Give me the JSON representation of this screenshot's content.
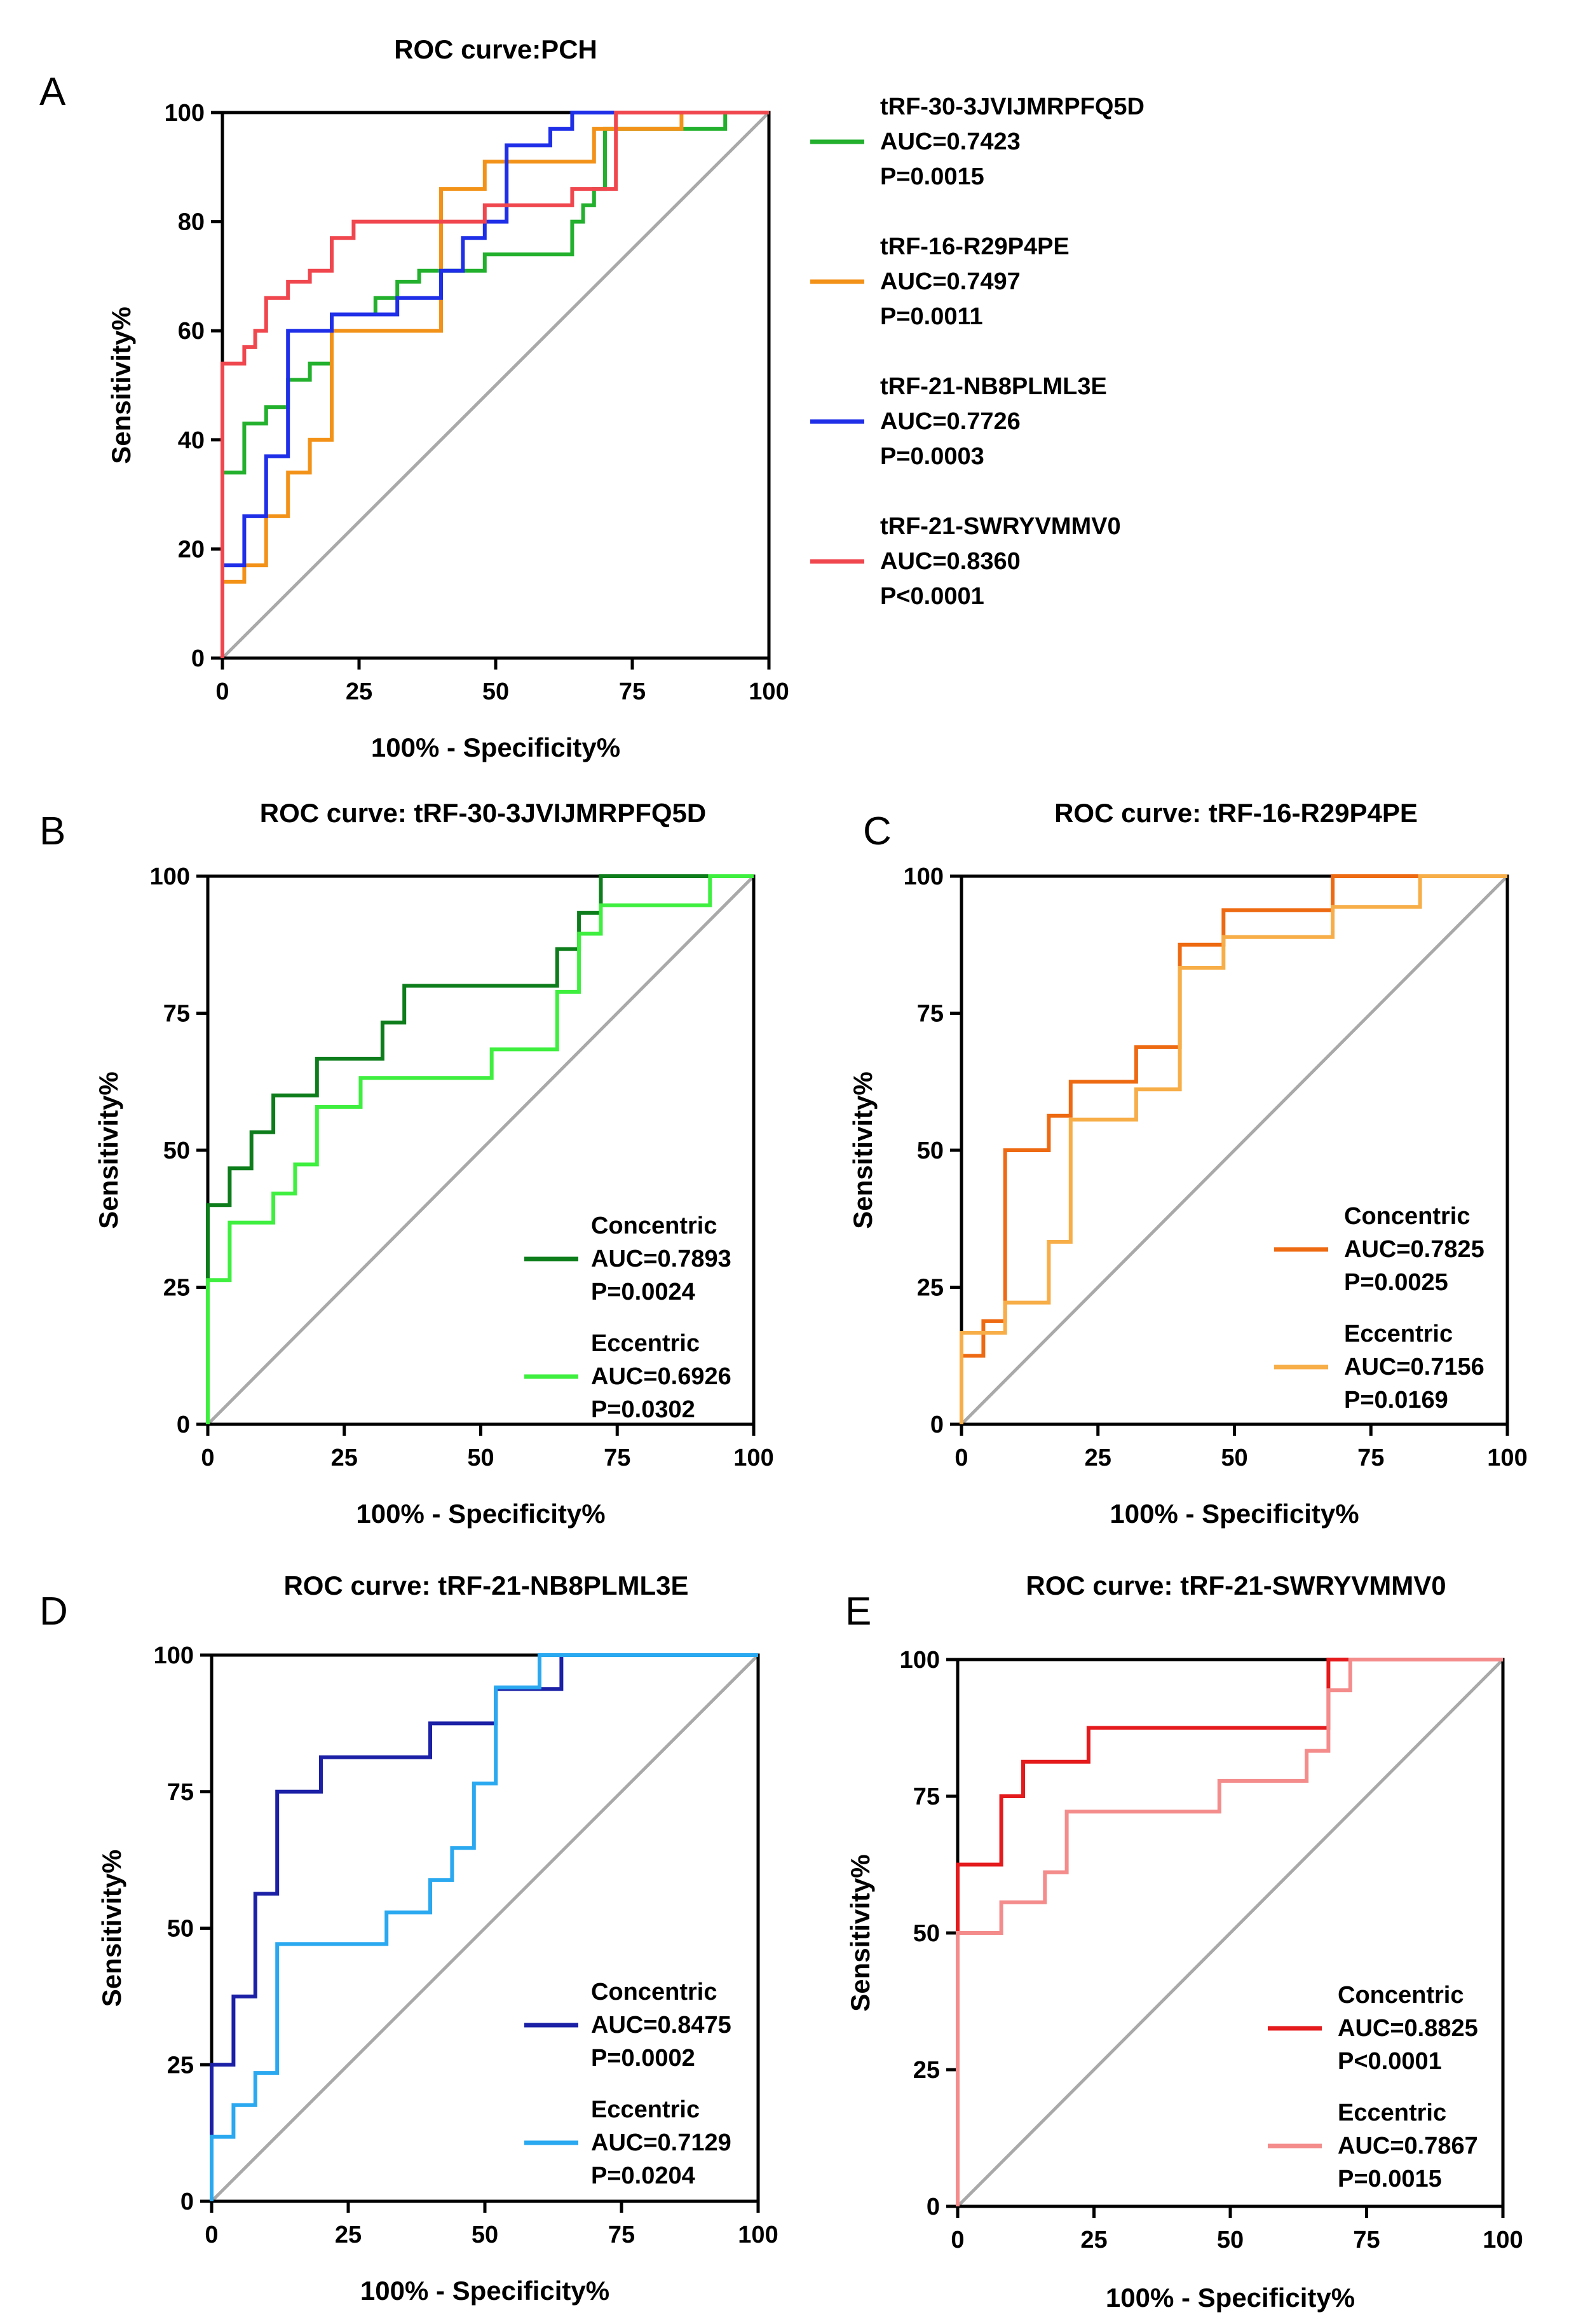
{
  "figure_labels": [
    "A",
    "B",
    "C",
    "D",
    "E"
  ],
  "colors": {
    "green": "#22b02d",
    "orange": "#f39218",
    "blue": "#1f2fe8",
    "red": "#f0474f",
    "dark_green": "#0d7d1b",
    "light_green": "#3fef3f",
    "dark_orange": "#ee6a12",
    "light_orange": "#f7ae48",
    "navy": "#1b20a6",
    "sky_blue": "#2aa8f0",
    "bright_red": "#e41a1c",
    "pink": "#f48c8c",
    "diagonal": "#a9a9a9"
  },
  "chart_data": [
    {
      "id": "A",
      "type": "line",
      "title": "ROC curve:PCH",
      "xlabel": "100% - Specificity%",
      "ylabel": "Sensitivity%",
      "xlim": [
        0,
        100
      ],
      "ylim": [
        0,
        100
      ],
      "xticks": [
        "0",
        "25",
        "50",
        "75",
        "100"
      ],
      "yticks": [
        "0",
        "20",
        "40",
        "60",
        "80",
        "100"
      ],
      "legend_position": "right",
      "series": [
        {
          "name": "tRF-30-3JVIJMRPFQ5D",
          "auc": "AUC=0.7423",
          "p": "P=0.0015",
          "color": "green",
          "x": [
            0,
            0,
            0,
            4,
            4,
            8,
            8,
            12,
            12,
            16,
            16,
            20,
            20,
            28,
            28,
            32,
            32,
            36,
            36,
            48,
            48,
            64,
            64,
            66,
            66,
            68,
            68,
            70,
            70,
            92,
            92,
            100
          ],
          "y": [
            0,
            20,
            34,
            34,
            43,
            43,
            46,
            46,
            51,
            51,
            54,
            54,
            63,
            63,
            66,
            66,
            69,
            69,
            71,
            71,
            74,
            74,
            80,
            80,
            83,
            83,
            86,
            86,
            97,
            97,
            100,
            100
          ]
        },
        {
          "name": "tRF-16-R29P4PE",
          "auc": "AUC=0.7497",
          "p": "P=0.0011",
          "color": "orange",
          "x": [
            0,
            0,
            4,
            4,
            8,
            8,
            12,
            12,
            16,
            16,
            20,
            20,
            32,
            32,
            40,
            40,
            48,
            48,
            68,
            68,
            72,
            72,
            84,
            84,
            100
          ],
          "y": [
            0,
            14,
            14,
            17,
            17,
            26,
            26,
            34,
            34,
            40,
            40,
            60,
            60,
            60,
            60,
            86,
            86,
            91,
            91,
            97,
            97,
            97,
            97,
            100,
            100
          ]
        },
        {
          "name": "tRF-21-NB8PLML3E",
          "auc": "AUC=0.7726",
          "p": "P=0.0003",
          "color": "blue",
          "x": [
            0,
            0,
            4,
            4,
            8,
            8,
            12,
            12,
            20,
            20,
            32,
            32,
            40,
            40,
            44,
            44,
            48,
            48,
            52,
            52,
            60,
            60,
            64,
            64,
            100
          ],
          "y": [
            0,
            17,
            17,
            26,
            26,
            37,
            37,
            60,
            60,
            63,
            63,
            66,
            66,
            71,
            71,
            77,
            77,
            80,
            80,
            94,
            94,
            97,
            97,
            100,
            100
          ]
        },
        {
          "name": "tRF-21-SWRYVMMV0",
          "auc": "AUC=0.8360",
          "p": "P<0.0001",
          "color": "red",
          "x": [
            0,
            0,
            4,
            4,
            6,
            6,
            8,
            8,
            12,
            12,
            16,
            16,
            20,
            20,
            24,
            24,
            48,
            48,
            64,
            64,
            72,
            72,
            100
          ],
          "y": [
            0,
            54,
            54,
            57,
            57,
            60,
            60,
            66,
            66,
            69,
            69,
            71,
            71,
            77,
            77,
            80,
            80,
            83,
            83,
            86,
            86,
            100,
            100
          ]
        }
      ]
    },
    {
      "id": "B",
      "type": "line",
      "title": "ROC curve: tRF-30-3JVIJMRPFQ5D",
      "xlabel": "100% - Specificity%",
      "ylabel": "Sensitivity%",
      "xlim": [
        0,
        100
      ],
      "ylim": [
        0,
        100
      ],
      "xticks": [
        "0",
        "25",
        "50",
        "75",
        "100"
      ],
      "yticks": [
        "0",
        "25",
        "50",
        "75",
        "100"
      ],
      "legend_position": "bottom-right",
      "series": [
        {
          "name": "Concentric",
          "auc": "AUC=0.7893",
          "p": "P=0.0024",
          "color": "dark_green",
          "x": [
            0,
            0,
            4,
            4,
            8,
            8,
            12,
            12,
            20,
            20,
            32,
            32,
            36,
            36,
            64,
            64,
            68,
            68,
            72,
            72,
            100
          ],
          "y": [
            0,
            40,
            40,
            46.7,
            46.7,
            53.3,
            53.3,
            60,
            60,
            66.7,
            66.7,
            73.3,
            73.3,
            80,
            80,
            86.7,
            86.7,
            93.3,
            93.3,
            100,
            100
          ]
        },
        {
          "name": "Eccentric",
          "auc": "AUC=0.6926",
          "p": "P=0.0302",
          "color": "light_green",
          "x": [
            0,
            0,
            4,
            4,
            12,
            12,
            16,
            16,
            20,
            20,
            28,
            28,
            52,
            52,
            64,
            64,
            68,
            68,
            72,
            72,
            92,
            92,
            100
          ],
          "y": [
            0,
            26.3,
            26.3,
            36.8,
            36.8,
            42.1,
            42.1,
            47.4,
            47.4,
            57.9,
            57.9,
            63.2,
            63.2,
            68.4,
            68.4,
            78.9,
            78.9,
            89.5,
            89.5,
            94.7,
            94.7,
            100,
            100
          ]
        }
      ]
    },
    {
      "id": "C",
      "type": "line",
      "title": "ROC curve: tRF-16-R29P4PE",
      "xlabel": "100% - Specificity%",
      "ylabel": "Sensitivity%",
      "xlim": [
        0,
        100
      ],
      "ylim": [
        0,
        100
      ],
      "xticks": [
        "0",
        "25",
        "50",
        "75",
        "100"
      ],
      "yticks": [
        "0",
        "25",
        "50",
        "75",
        "100"
      ],
      "legend_position": "bottom-right",
      "series": [
        {
          "name": "Concentric",
          "auc": "AUC=0.7825",
          "p": "P=0.0025",
          "color": "dark_orange",
          "x": [
            0,
            0,
            4,
            4,
            8,
            8,
            16,
            16,
            20,
            20,
            32,
            32,
            40,
            40,
            48,
            48,
            68,
            68,
            100
          ],
          "y": [
            0,
            12.5,
            12.5,
            18.8,
            18.8,
            50,
            50,
            56.3,
            56.3,
            62.5,
            62.5,
            68.8,
            68.8,
            87.5,
            87.5,
            93.8,
            93.8,
            100,
            100
          ]
        },
        {
          "name": "Eccentric",
          "auc": "AUC=0.7156",
          "p": "P=0.0169",
          "color": "light_orange",
          "x": [
            0,
            0,
            8,
            8,
            16,
            16,
            20,
            20,
            32,
            32,
            40,
            40,
            48,
            48,
            68,
            68,
            84,
            84,
            100
          ],
          "y": [
            0,
            16.7,
            16.7,
            22.2,
            22.2,
            33.3,
            33.3,
            55.6,
            55.6,
            61.1,
            61.1,
            83.3,
            83.3,
            88.9,
            88.9,
            94.4,
            94.4,
            100,
            100
          ]
        }
      ]
    },
    {
      "id": "D",
      "type": "line",
      "title": "ROC curve: tRF-21-NB8PLML3E",
      "xlabel": "100% - Specificity%",
      "ylabel": "Sensitivity%",
      "xlim": [
        0,
        100
      ],
      "ylim": [
        0,
        100
      ],
      "xticks": [
        "0",
        "25",
        "50",
        "75",
        "100"
      ],
      "yticks": [
        "0",
        "25",
        "50",
        "75",
        "100"
      ],
      "legend_position": "bottom-right",
      "series": [
        {
          "name": "Concentric",
          "auc": "AUC=0.8475",
          "p": "P=0.0002",
          "color": "navy",
          "x": [
            0,
            0,
            4,
            4,
            8,
            8,
            12,
            12,
            20,
            20,
            40,
            40,
            52,
            52,
            64,
            64,
            100
          ],
          "y": [
            0,
            25,
            25,
            37.5,
            37.5,
            56.3,
            56.3,
            75,
            75,
            81.3,
            81.3,
            87.5,
            87.5,
            93.8,
            93.8,
            100,
            100
          ]
        },
        {
          "name": "Eccentric",
          "auc": "AUC=0.7129",
          "p": "P=0.0204",
          "color": "sky_blue",
          "x": [
            0,
            0,
            4,
            4,
            8,
            8,
            12,
            12,
            32,
            32,
            40,
            40,
            44,
            44,
            48,
            48,
            52,
            52,
            60,
            60,
            100
          ],
          "y": [
            0,
            11.8,
            11.8,
            17.6,
            17.6,
            23.5,
            23.5,
            47.1,
            47.1,
            52.9,
            52.9,
            58.8,
            58.8,
            64.7,
            64.7,
            76.5,
            76.5,
            94.1,
            94.1,
            100,
            100
          ]
        }
      ]
    },
    {
      "id": "E",
      "type": "line",
      "title": "ROC curve: tRF-21-SWRYVMMV0",
      "xlabel": "100% - Specificity%",
      "ylabel": "Sensitivity%",
      "xlim": [
        0,
        100
      ],
      "ylim": [
        0,
        100
      ],
      "xticks": [
        "0",
        "25",
        "50",
        "75",
        "100"
      ],
      "yticks": [
        "0",
        "25",
        "50",
        "75",
        "100"
      ],
      "legend_position": "bottom-right",
      "series": [
        {
          "name": "Concentric",
          "auc": "AUC=0.8825",
          "p": "P<0.0001",
          "color": "bright_red",
          "x": [
            0,
            0,
            8,
            8,
            12,
            12,
            24,
            24,
            68,
            68,
            100
          ],
          "y": [
            0,
            62.5,
            62.5,
            75,
            75,
            81.3,
            81.3,
            87.5,
            87.5,
            100,
            100
          ]
        },
        {
          "name": "Eccentric",
          "auc": "AUC=0.7867",
          "p": "P=0.0015",
          "color": "pink",
          "x": [
            0,
            0,
            8,
            8,
            16,
            16,
            20,
            20,
            48,
            48,
            64,
            64,
            68,
            68,
            72,
            72,
            100
          ],
          "y": [
            0,
            50,
            50,
            55.6,
            55.6,
            61.1,
            61.1,
            72.2,
            72.2,
            77.8,
            77.8,
            83.3,
            83.3,
            94.4,
            94.4,
            100,
            100
          ]
        }
      ]
    }
  ]
}
